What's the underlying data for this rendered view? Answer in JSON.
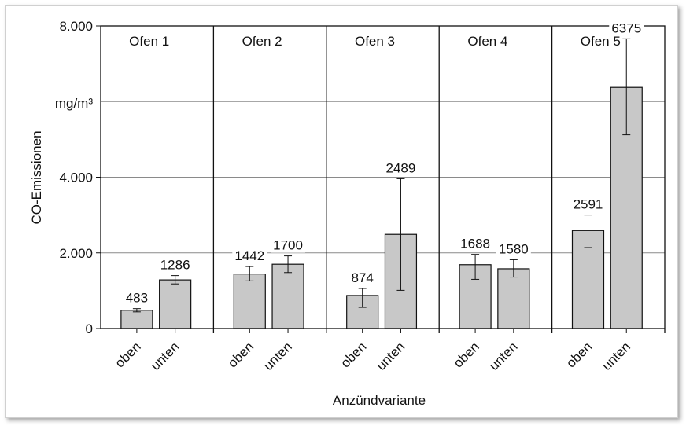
{
  "chart_data": {
    "type": "bar",
    "ylabel": "CO-Emissionen",
    "unit": "mg/m³",
    "xlabel": "Anzündvariante",
    "ylim": [
      0,
      8000
    ],
    "yticks": [
      0,
      2000,
      4000,
      8000
    ],
    "ytick_labels": [
      "0",
      "2.000",
      "4.000",
      "8.000"
    ],
    "grid": true,
    "bar_color": "#c8c8c8",
    "panels": [
      {
        "title": "Ofen 1",
        "bars": [
          {
            "category": "oben",
            "value": 483,
            "label": "483",
            "err_low": 440,
            "err_high": 526
          },
          {
            "category": "unten",
            "value": 1286,
            "label": "1286",
            "err_low": 1180,
            "err_high": 1400
          }
        ]
      },
      {
        "title": "Ofen 2",
        "bars": [
          {
            "category": "oben",
            "value": 1442,
            "label": "1442",
            "err_low": 1260,
            "err_high": 1640
          },
          {
            "category": "unten",
            "value": 1700,
            "label": "1700",
            "err_low": 1480,
            "err_high": 1920
          }
        ]
      },
      {
        "title": "Ofen 3",
        "bars": [
          {
            "category": "oben",
            "value": 874,
            "label": "874",
            "err_low": 560,
            "err_high": 1060
          },
          {
            "category": "unten",
            "value": 2489,
            "label": "2489",
            "err_low": 1010,
            "err_high": 3960
          }
        ]
      },
      {
        "title": "Ofen 4",
        "bars": [
          {
            "category": "oben",
            "value": 1688,
            "label": "1688",
            "err_low": 1300,
            "err_high": 1960
          },
          {
            "category": "unten",
            "value": 1580,
            "label": "1580",
            "err_low": 1360,
            "err_high": 1820
          }
        ]
      },
      {
        "title": "Ofen 5",
        "bars": [
          {
            "category": "oben",
            "value": 2591,
            "label": "2591",
            "err_low": 2140,
            "err_high": 3000
          },
          {
            "category": "unten",
            "value": 6375,
            "label": "6375",
            "err_low": 5120,
            "err_high": 7660
          }
        ]
      }
    ]
  }
}
